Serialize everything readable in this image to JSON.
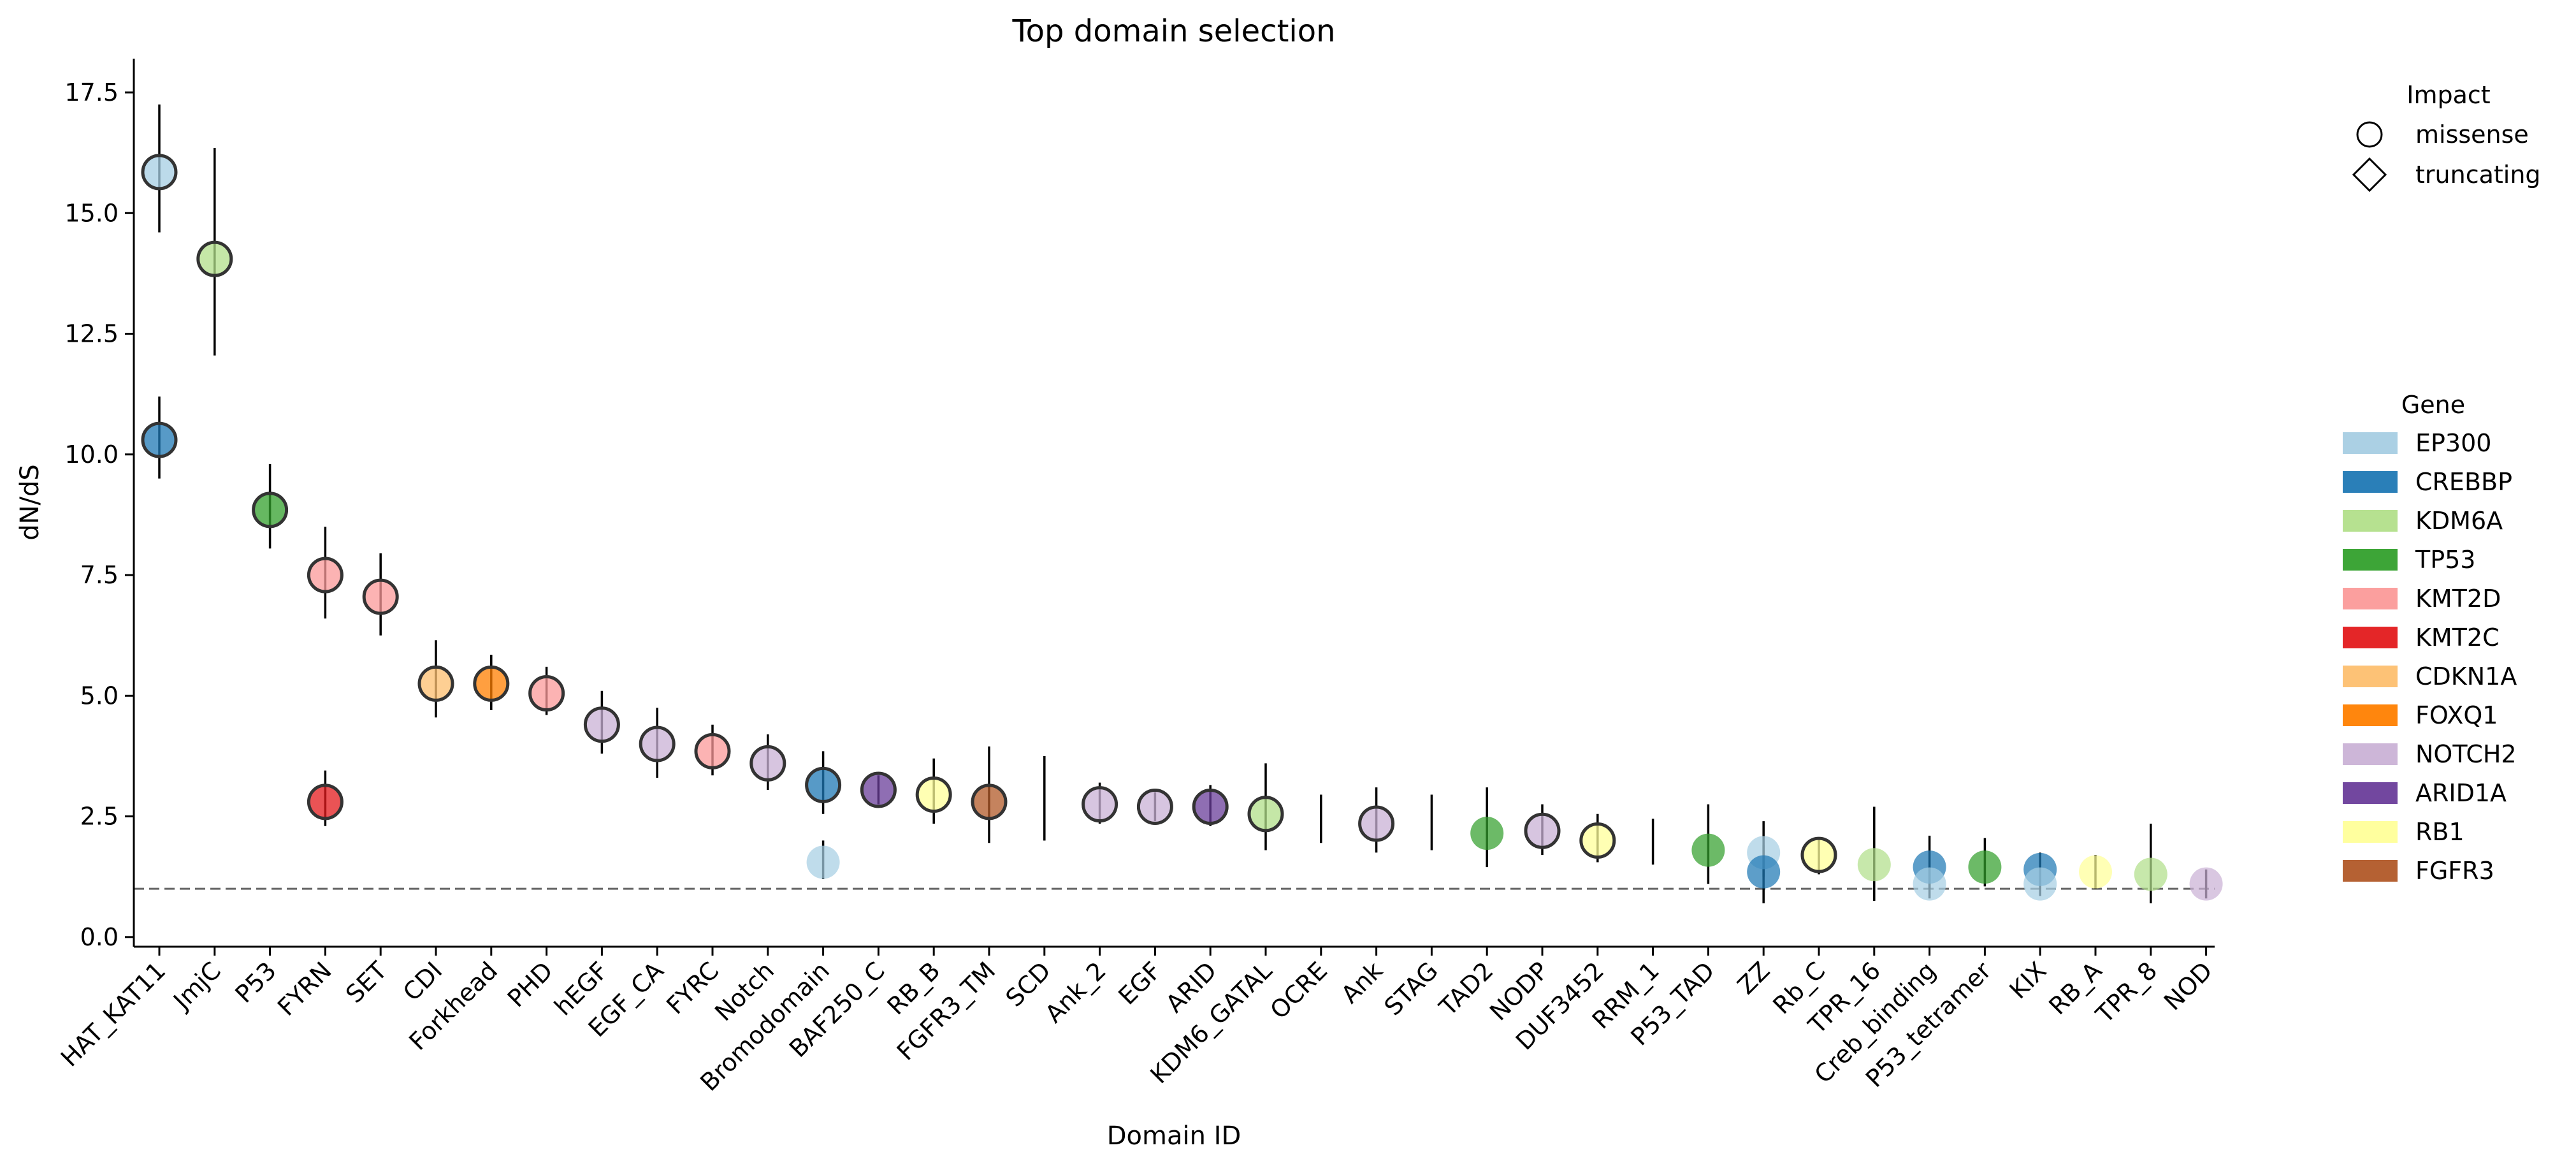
{
  "chart_data": {
    "type": "scatter",
    "title": "Top  domain selection",
    "xlabel": "Domain ID",
    "ylabel": "dN/dS",
    "ylim": [
      -0.2,
      18.2
    ],
    "yticks": [
      "0.0",
      "2.5",
      "5.0",
      "7.5",
      "10.0",
      "12.5",
      "15.0",
      "17.5"
    ],
    "ytick_values": [
      0,
      2.5,
      5,
      7.5,
      10,
      12.5,
      15,
      17.5
    ],
    "reference_line": 1.0,
    "categories": [
      "HAT_KAT11",
      "JmjC",
      "P53",
      "FYRN",
      "SET",
      "CDI",
      "Forkhead",
      "PHD",
      "hEGF",
      "EGF_CA",
      "FYRC",
      "Notch",
      "Bromodomain",
      "BAF250_C",
      "RB_B",
      "FGFR3_TM",
      "SCD",
      "Ank_2",
      "EGF",
      "ARID",
      "KDM6_GATAL",
      "OCRE",
      "Ank",
      "STAG",
      "TAD2",
      "NODP",
      "DUF3452",
      "RRM_1",
      "P53_TAD",
      "ZZ",
      "Rb_C",
      "TPR_16",
      "Creb_binding",
      "P53_tetramer",
      "KIX",
      "RB_A",
      "TPR_8",
      "NOD"
    ],
    "legend_impact": {
      "title": "Impact",
      "entries": [
        {
          "label": "missense",
          "shape": "circle"
        },
        {
          "label": "truncating",
          "shape": "diamond"
        }
      ]
    },
    "legend_gene": {
      "title": "Gene",
      "entries": [
        {
          "label": "EP300",
          "color": "#a6cee3"
        },
        {
          "label": "CREBBP",
          "color": "#1f78b4"
        },
        {
          "label": "KDM6A",
          "color": "#b2df8a"
        },
        {
          "label": "TP53",
          "color": "#33a02c"
        },
        {
          "label": "KMT2D",
          "color": "#fb9a99"
        },
        {
          "label": "KMT2C",
          "color": "#e31a1c"
        },
        {
          "label": "CDKN1A",
          "color": "#fdbf6f"
        },
        {
          "label": "FOXQ1",
          "color": "#ff7f00"
        },
        {
          "label": "NOTCH2",
          "color": "#cab2d6"
        },
        {
          "label": "ARID1A",
          "color": "#6a3d9a"
        },
        {
          "label": "RB1",
          "color": "#ffff99"
        },
        {
          "label": "FGFR3",
          "color": "#b15928"
        }
      ]
    },
    "points": [
      {
        "domain": "HAT_KAT11",
        "gene": "EP300",
        "value": 15.85,
        "low": 14.6,
        "high": 17.25,
        "outlined": true
      },
      {
        "domain": "HAT_KAT11",
        "gene": "CREBBP",
        "value": 10.3,
        "low": 9.5,
        "high": 11.2,
        "outlined": true
      },
      {
        "domain": "JmjC",
        "gene": "KDM6A",
        "value": 14.05,
        "low": 12.05,
        "high": 16.35,
        "outlined": true
      },
      {
        "domain": "P53",
        "gene": "TP53",
        "value": 8.85,
        "low": 8.05,
        "high": 9.8,
        "outlined": true
      },
      {
        "domain": "FYRN",
        "gene": "KMT2D",
        "value": 7.5,
        "low": 6.6,
        "high": 8.5,
        "outlined": true
      },
      {
        "domain": "FYRN",
        "gene": "KMT2C",
        "value": 2.8,
        "low": 2.3,
        "high": 3.45,
        "outlined": true
      },
      {
        "domain": "SET",
        "gene": "KMT2D",
        "value": 7.05,
        "low": 6.25,
        "high": 7.95,
        "outlined": true
      },
      {
        "domain": "CDI",
        "gene": "CDKN1A",
        "value": 5.25,
        "low": 4.55,
        "high": 6.15,
        "outlined": true
      },
      {
        "domain": "Forkhead",
        "gene": "FOXQ1",
        "value": 5.25,
        "low": 4.7,
        "high": 5.85,
        "outlined": true
      },
      {
        "domain": "PHD",
        "gene": "KMT2D",
        "value": 5.05,
        "low": 4.6,
        "high": 5.6,
        "outlined": true
      },
      {
        "domain": "hEGF",
        "gene": "NOTCH2",
        "value": 4.4,
        "low": 3.8,
        "high": 5.1,
        "outlined": true
      },
      {
        "domain": "EGF_CA",
        "gene": "NOTCH2",
        "value": 4.0,
        "low": 3.3,
        "high": 4.75,
        "outlined": true
      },
      {
        "domain": "FYRC",
        "gene": "KMT2D",
        "value": 3.85,
        "low": 3.35,
        "high": 4.4,
        "outlined": true
      },
      {
        "domain": "Notch",
        "gene": "NOTCH2",
        "value": 3.6,
        "low": 3.05,
        "high": 4.2,
        "outlined": true
      },
      {
        "domain": "Bromodomain",
        "gene": "CREBBP",
        "value": 3.15,
        "low": 2.55,
        "high": 3.85,
        "outlined": true
      },
      {
        "domain": "Bromodomain",
        "gene": "EP300",
        "value": 1.55,
        "low": 1.2,
        "high": 2.0,
        "outlined": false
      },
      {
        "domain": "BAF250_C",
        "gene": "ARID1A",
        "value": 3.05,
        "low": 2.75,
        "high": 3.35,
        "outlined": true
      },
      {
        "domain": "RB_B",
        "gene": "RB1",
        "value": 2.95,
        "low": 2.35,
        "high": 3.7,
        "outlined": true
      },
      {
        "domain": "FGFR3_TM",
        "gene": "FGFR3",
        "value": 2.8,
        "low": 1.95,
        "high": 3.95,
        "outlined": true
      },
      {
        "domain": "SCD",
        "gene": "",
        "value": 2.85,
        "low": 2.0,
        "high": 3.75,
        "outlined": false,
        "marker": false
      },
      {
        "domain": "Ank_2",
        "gene": "NOTCH2",
        "value": 2.75,
        "low": 2.35,
        "high": 3.2,
        "outlined": true
      },
      {
        "domain": "EGF",
        "gene": "NOTCH2",
        "value": 2.7,
        "low": 2.4,
        "high": 3.0,
        "outlined": true
      },
      {
        "domain": "ARID",
        "gene": "ARID1A",
        "value": 2.7,
        "low": 2.3,
        "high": 3.15,
        "outlined": true
      },
      {
        "domain": "KDM6_GATAL",
        "gene": "KDM6A",
        "value": 2.55,
        "low": 1.8,
        "high": 3.6,
        "outlined": true
      },
      {
        "domain": "OCRE",
        "gene": "",
        "value": 2.4,
        "low": 1.95,
        "high": 2.95,
        "outlined": false,
        "marker": false
      },
      {
        "domain": "Ank",
        "gene": "NOTCH2",
        "value": 2.35,
        "low": 1.75,
        "high": 3.1,
        "outlined": true
      },
      {
        "domain": "STAG",
        "gene": "",
        "value": 2.35,
        "low": 1.8,
        "high": 2.95,
        "outlined": false,
        "marker": false
      },
      {
        "domain": "TAD2",
        "gene": "TP53",
        "value": 2.15,
        "low": 1.45,
        "high": 3.1,
        "outlined": false
      },
      {
        "domain": "NODP",
        "gene": "NOTCH2",
        "value": 2.2,
        "low": 1.7,
        "high": 2.75,
        "outlined": true
      },
      {
        "domain": "DUF3452",
        "gene": "RB1",
        "value": 2.0,
        "low": 1.55,
        "high": 2.55,
        "outlined": true
      },
      {
        "domain": "RRM_1",
        "gene": "",
        "value": 1.95,
        "low": 1.5,
        "high": 2.45,
        "outlined": false,
        "marker": false
      },
      {
        "domain": "P53_TAD",
        "gene": "TP53",
        "value": 1.8,
        "low": 1.1,
        "high": 2.75,
        "outlined": false
      },
      {
        "domain": "ZZ",
        "gene": "EP300",
        "value": 1.75,
        "low": 1.25,
        "high": 2.4,
        "outlined": false
      },
      {
        "domain": "ZZ",
        "gene": "CREBBP",
        "value": 1.35,
        "low": 0.7,
        "high": 1.9,
        "outlined": false
      },
      {
        "domain": "Rb_C",
        "gene": "RB1",
        "value": 1.7,
        "low": 1.3,
        "high": 2.05,
        "outlined": true
      },
      {
        "domain": "TPR_16",
        "gene": "KDM6A",
        "value": 1.5,
        "low": 0.75,
        "high": 2.7,
        "outlined": false
      },
      {
        "domain": "Creb_binding",
        "gene": "CREBBP",
        "value": 1.45,
        "low": 1.0,
        "high": 2.1,
        "outlined": false
      },
      {
        "domain": "Creb_binding",
        "gene": "EP300",
        "value": 1.1,
        "low": 0.8,
        "high": 1.45,
        "outlined": false
      },
      {
        "domain": "P53_tetramer",
        "gene": "TP53",
        "value": 1.45,
        "low": 1.05,
        "high": 2.05,
        "outlined": false
      },
      {
        "domain": "KIX",
        "gene": "CREBBP",
        "value": 1.4,
        "low": 1.0,
        "high": 1.75,
        "outlined": false
      },
      {
        "domain": "KIX",
        "gene": "EP300",
        "value": 1.1,
        "low": 0.85,
        "high": 1.4,
        "outlined": false
      },
      {
        "domain": "RB_A",
        "gene": "RB1",
        "value": 1.35,
        "low": 1.0,
        "high": 1.7,
        "outlined": false
      },
      {
        "domain": "TPR_8",
        "gene": "KDM6A",
        "value": 1.3,
        "low": 0.7,
        "high": 2.35,
        "outlined": false
      },
      {
        "domain": "NOD",
        "gene": "NOTCH2",
        "value": 1.1,
        "low": 0.8,
        "high": 1.4,
        "outlined": false
      }
    ]
  }
}
